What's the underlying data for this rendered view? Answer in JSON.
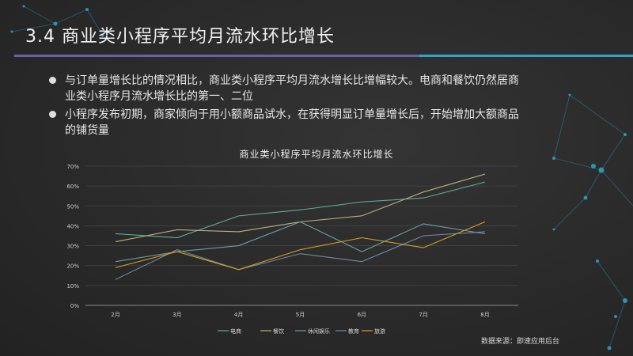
{
  "slide": {
    "title": "3.4 商业类小程序平均月流水环比增长",
    "bullets": [
      "与订单量增长比的情况相比，商业类小程序平均月流水增长比增幅较大。电商和餐饮仍然居商业类小程序月流水增长比的第一、二位",
      "小程序发布初期，商家倾向于用小额商品试水，在获得明显订单量增长后，开始增加大额商品的铺货量"
    ],
    "source": "数据来源：即速应用后台"
  },
  "colors": {
    "background": "#2a2a2a",
    "accent_purple": "#6a5fa8",
    "accent_blue": "#2fa4c9"
  },
  "chart_data": {
    "type": "line",
    "title": "商业类小程序平均月流水环比增长",
    "categories": [
      "2月",
      "3月",
      "4月",
      "5月",
      "6月",
      "7月",
      "8月"
    ],
    "ylim": [
      0,
      70
    ],
    "yticks": [
      0,
      10,
      20,
      30,
      40,
      50,
      60,
      70
    ],
    "ytick_labels": [
      "0%",
      "10%",
      "20%",
      "30%",
      "40%",
      "50%",
      "60%",
      "70%"
    ],
    "grid": true,
    "legend_position": "bottom",
    "series": [
      {
        "name": "电商",
        "color": "#5fae9a",
        "values": [
          36,
          34,
          45,
          48,
          52,
          54,
          62
        ]
      },
      {
        "name": "餐饮",
        "color": "#b9b07a",
        "values": [
          32,
          38,
          37,
          42,
          45,
          57,
          66
        ]
      },
      {
        "name": "休闲娱乐",
        "color": "#6d9ea6",
        "values": [
          22,
          27,
          30,
          42,
          27,
          41,
          36
        ]
      },
      {
        "name": "教育",
        "color": "#6f8aa6",
        "values": [
          13,
          28,
          18,
          26,
          22,
          35,
          37
        ]
      },
      {
        "name": "旅游",
        "color": "#d9a21c",
        "values": [
          19,
          27,
          18,
          28,
          34,
          29,
          42
        ]
      }
    ]
  }
}
